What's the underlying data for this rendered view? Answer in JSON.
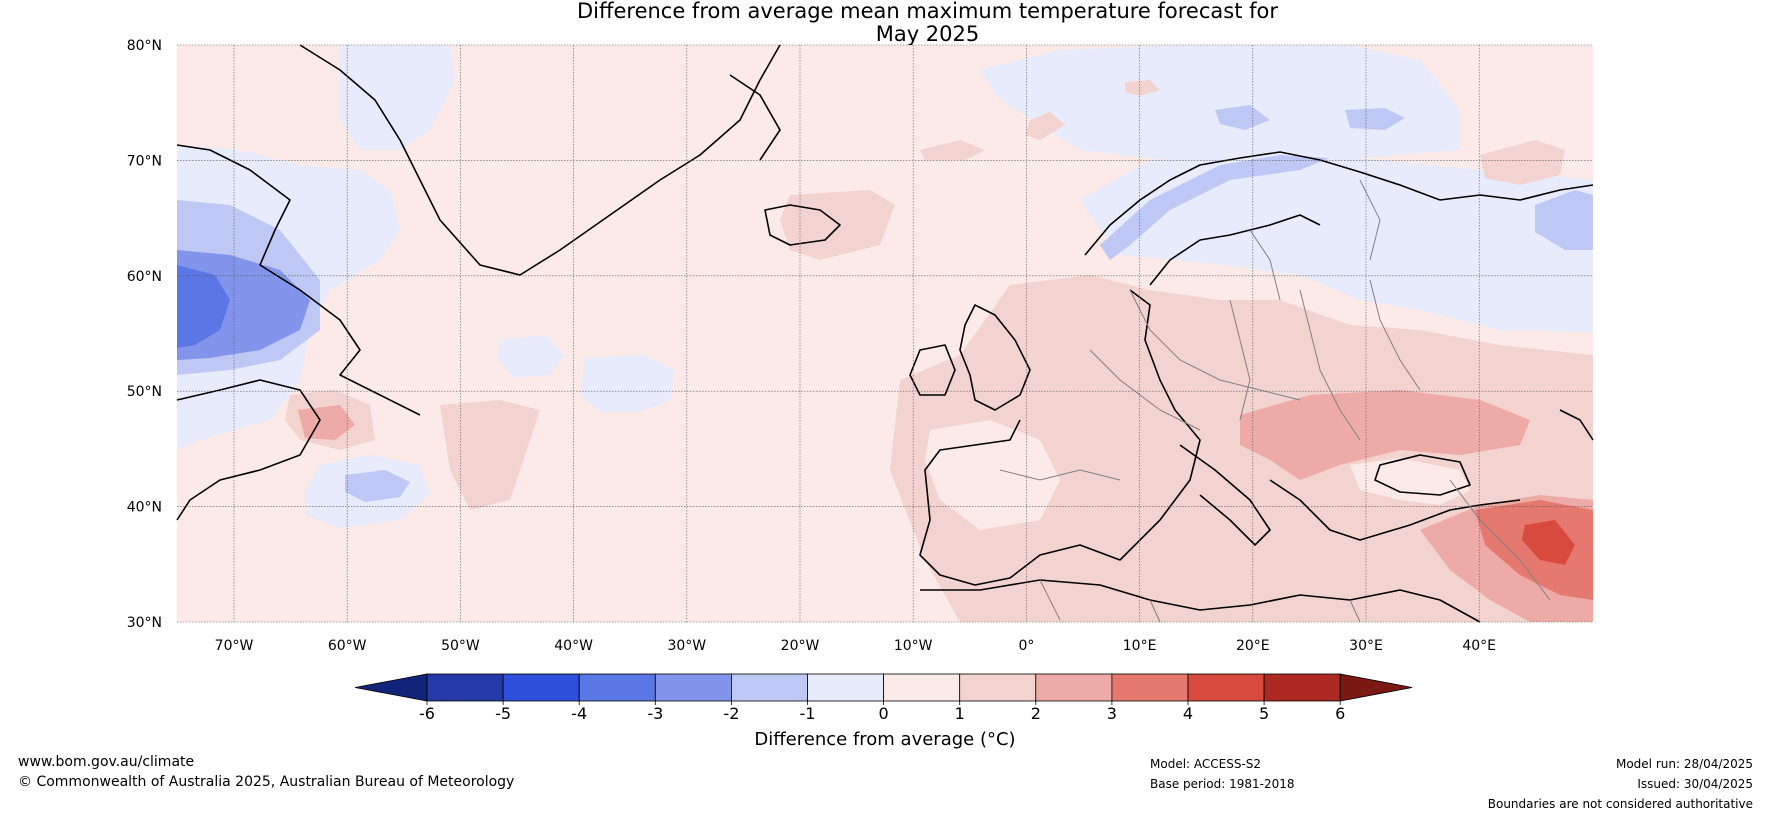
{
  "title": {
    "line1": "Difference from average mean maximum temperature forecast for",
    "line2": "May 2025"
  },
  "map": {
    "lat_ticks": [
      "30°N",
      "40°N",
      "50°N",
      "60°N",
      "70°N",
      "80°N"
    ],
    "lon_ticks": [
      "70°W",
      "60°W",
      "50°W",
      "40°W",
      "30°W",
      "20°W",
      "10°W",
      "0°",
      "10°E",
      "20°E",
      "30°E",
      "40°E"
    ],
    "ocean_color": "#fbeae8",
    "coast_color": "#000000",
    "border_color": "#808080"
  },
  "colorbar": {
    "tick_labels": [
      "-6",
      "-5",
      "-4",
      "-3",
      "-2",
      "-1",
      "0",
      "1",
      "2",
      "3",
      "4",
      "5",
      "6"
    ],
    "colors": [
      "#12237a",
      "#233aa8",
      "#2e50dc",
      "#5b76e5",
      "#8394ec",
      "#bfc8f4",
      "#e8ebfb",
      "#fbeae8",
      "#f3d3d0",
      "#edaaa6",
      "#e5786f",
      "#d84a3e",
      "#ad2a22",
      "#7b1915"
    ],
    "label": "Difference from average (°C)"
  },
  "footer": {
    "url": "www.bom.gov.au/climate",
    "copyright": "© Commonwealth of Australia 2025, Australian Bureau of Meteorology",
    "model": "Model: ACCESS-S2",
    "base_period": "Base period: 1981-2018",
    "model_run": "Model run: 28/04/2025",
    "issued": "Issued: 30/04/2025",
    "disclaimer": "Boundaries are not considered authoritative"
  }
}
